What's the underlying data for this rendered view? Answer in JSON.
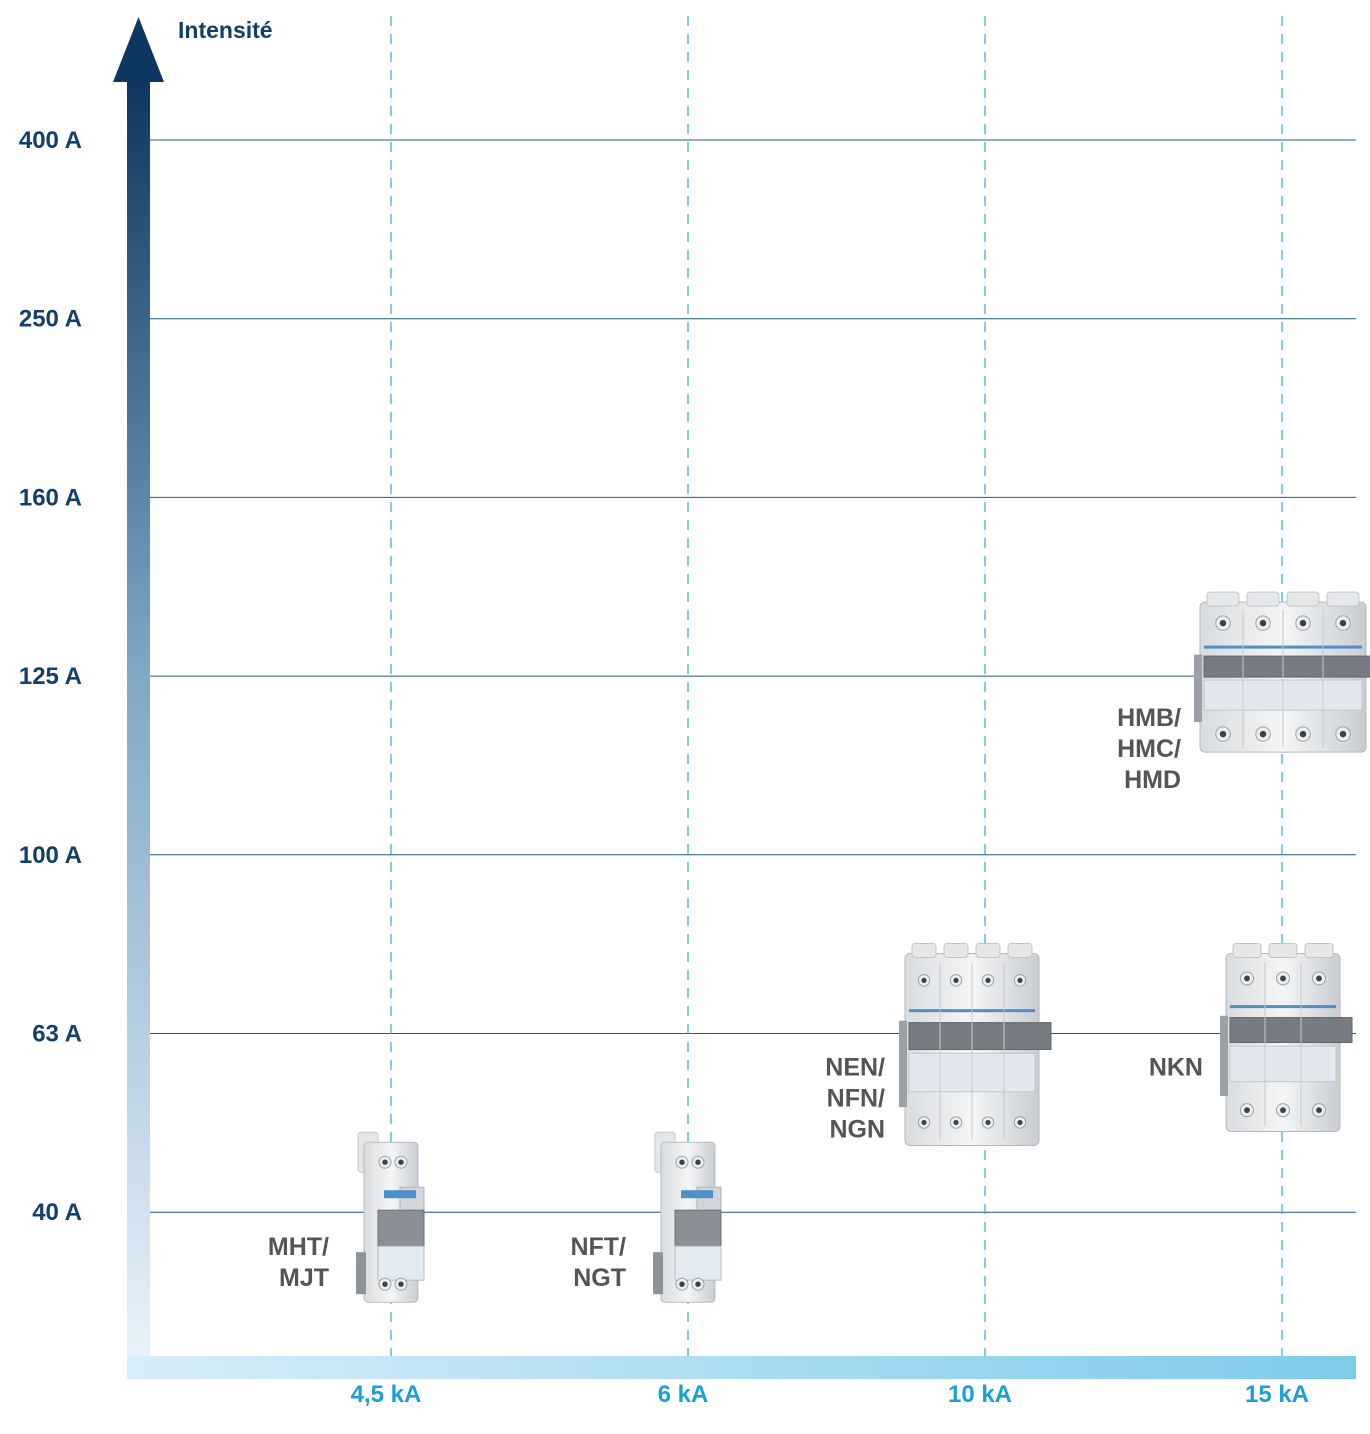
{
  "chart_data": {
    "type": "scatter",
    "y_axis_title": "Intensité",
    "y_categories": [
      "40 A",
      "63 A",
      "100 A",
      "125 A",
      "160 A",
      "250 A",
      "400 A"
    ],
    "x_categories": [
      "4,5 kA",
      "6 kA",
      "10 kA",
      "15 kA"
    ],
    "grid": true,
    "series": [
      {
        "name": "MHT/ MJT",
        "label_lines": [
          "MHT/",
          "MJT"
        ],
        "x": "4,5 kA",
        "y_range": [
          "",
          "40 A"
        ],
        "device": "1P+N"
      },
      {
        "name": "NFT/ NGT",
        "label_lines": [
          "NFT/",
          "NGT"
        ],
        "x": "6 kA",
        "y_range": [
          "",
          "40 A"
        ],
        "device": "1P+N"
      },
      {
        "name": "NEN/ NFN/ NGN",
        "label_lines": [
          "NEN/",
          "NFN/",
          "NGN"
        ],
        "x": "10 kA",
        "y_range": [
          "",
          "63 A"
        ],
        "device": "4P"
      },
      {
        "name": "NKN",
        "label_lines": [
          "NKN"
        ],
        "x": "15 kA",
        "y_range": [
          "",
          "63 A"
        ],
        "device": "3P"
      },
      {
        "name": "HMB/ HMC/ HMD",
        "label_lines": [
          "HMB/",
          "HMC/",
          "HMD"
        ],
        "x": "15 kA",
        "y_range": [
          "100 A",
          "125 A"
        ],
        "device": "4P-large"
      }
    ]
  },
  "colors": {
    "axis_dark": "#0d3760",
    "axis_light": "#eaf5fc",
    "x_axis_start": "#d7eef9",
    "x_axis_end": "#7dcbea",
    "grid_line": "#1d5a86",
    "dashed_line": "#3fb0dc",
    "y_label": "#133f6b",
    "x_label": "#1aa0d8",
    "product_label": "#555555"
  }
}
